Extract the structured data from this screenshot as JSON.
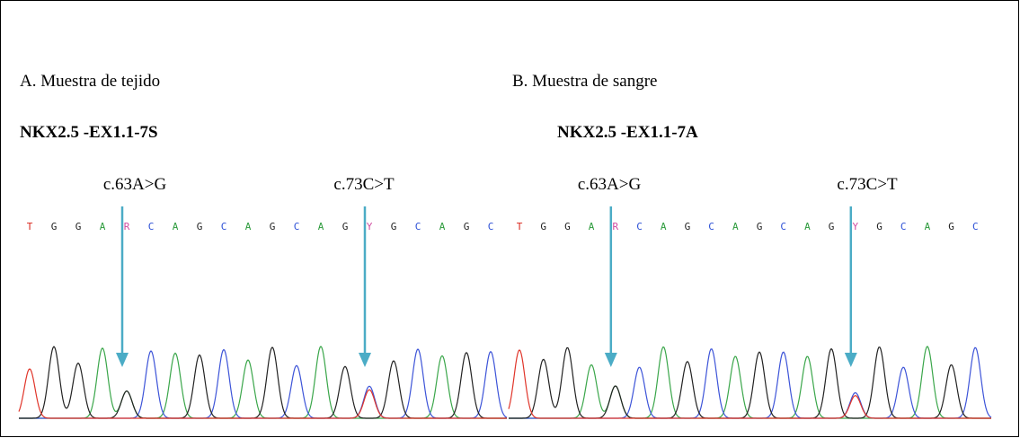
{
  "panels": [
    {
      "caption": "A. Muestra de tejido",
      "gene": "NKX2.5 -EX1.1-7S",
      "mutations": [
        "c.63A>G",
        "c.73C>T"
      ],
      "sequence": [
        "T",
        "G",
        "G",
        "A",
        "R",
        "C",
        "A",
        "G",
        "C",
        "A",
        "G",
        "C",
        "A",
        "G",
        "Y",
        "G",
        "C",
        "A",
        "G",
        "C"
      ]
    },
    {
      "caption": "B. Muestra de sangre",
      "gene": "NKX2.5 -EX1.1-7A",
      "mutations": [
        "c.63A>G",
        "c.73C>T"
      ],
      "sequence": [
        "T",
        "G",
        "G",
        "A",
        "R",
        "C",
        "A",
        "G",
        "C",
        "A",
        "G",
        "C",
        "A",
        "G",
        "Y",
        "G",
        "C",
        "A",
        "G",
        "C"
      ]
    }
  ]
}
